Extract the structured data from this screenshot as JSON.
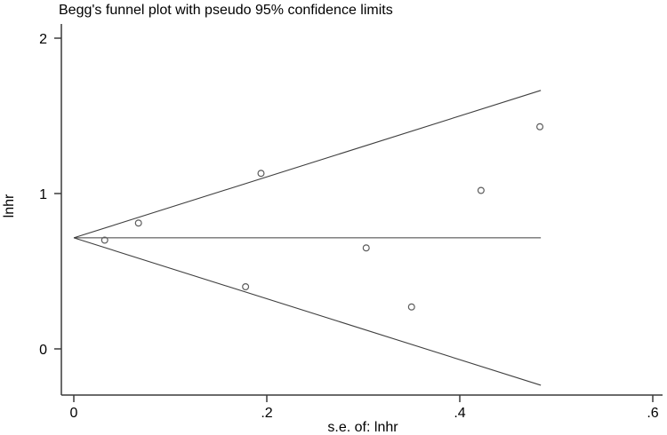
{
  "chart_data": {
    "type": "scatter",
    "title": "Begg's funnel plot with pseudo 95% confidence limits",
    "xlabel": "s.e. of: lnhr",
    "ylabel": "lnhr",
    "xlim": [
      0,
      0.61
    ],
    "ylim": [
      -0.3,
      2.09
    ],
    "grid": false,
    "legend": false,
    "marker": "open-circle",
    "x_ticks": [
      {
        "value": 0,
        "label": "0"
      },
      {
        "value": 0.2,
        "label": ".2"
      },
      {
        "value": 0.4,
        "label": ".4"
      },
      {
        "value": 0.6,
        "label": ".6"
      }
    ],
    "y_ticks": [
      {
        "value": 0,
        "label": "0"
      },
      {
        "value": 1,
        "label": "1"
      },
      {
        "value": 2,
        "label": "2"
      }
    ],
    "points": [
      {
        "x": 0.032,
        "y": 0.7
      },
      {
        "x": 0.067,
        "y": 0.81
      },
      {
        "x": 0.178,
        "y": 0.4
      },
      {
        "x": 0.194,
        "y": 1.13
      },
      {
        "x": 0.303,
        "y": 0.65
      },
      {
        "x": 0.35,
        "y": 0.27
      },
      {
        "x": 0.422,
        "y": 1.02
      },
      {
        "x": 0.483,
        "y": 1.43
      }
    ],
    "pooled_estimate": 0.715,
    "ci_z": 1.96,
    "funnel_se_max": 0.484,
    "lines": {
      "center": {
        "x1": 0,
        "y1": 0.715,
        "x2": 0.484,
        "y2": 0.715
      },
      "upper": {
        "x1": 0,
        "y1": 0.715,
        "x2": 0.484,
        "y2": 1.664
      },
      "lower": {
        "x1": 0,
        "y1": 0.715,
        "x2": 0.484,
        "y2": -0.234
      }
    },
    "colors": {
      "background": "#ffffff",
      "axis": "#3a3a3a",
      "funnel_line": "#3f3f3f",
      "marker": "#5c5c5c",
      "text": "#000000"
    }
  }
}
